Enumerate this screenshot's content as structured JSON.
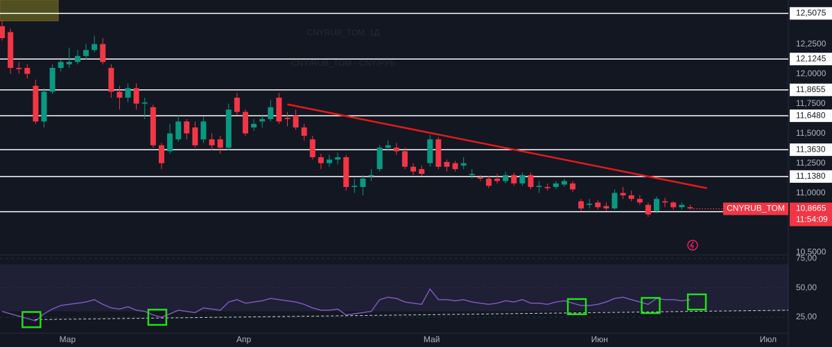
{
  "chart_data": {
    "type": "candlestick",
    "title": "CNYRUB_TOM, 1Д",
    "subtitle": "CNY/RUB_TOM - CNY/РУБ",
    "symbol_label": "CNYRUB_TOM",
    "last_price": {
      "value": 10.8665,
      "label": "10,8665"
    },
    "countdown": "11:54:09",
    "up_color": "#089981",
    "down_color": "#f23645",
    "x": [
      0,
      1,
      2,
      3,
      4,
      5,
      6,
      7,
      8,
      9,
      10,
      11,
      12,
      13,
      14,
      15,
      16,
      17,
      18,
      19,
      20,
      21,
      22,
      23,
      24,
      25,
      26,
      27,
      28,
      29,
      30,
      31,
      32,
      33,
      34,
      35,
      36,
      37,
      38,
      39,
      40,
      41,
      42,
      43,
      44,
      45,
      46,
      47,
      48,
      49,
      50,
      51,
      52,
      53,
      54,
      55,
      56,
      57,
      58,
      59,
      60,
      61,
      62,
      63,
      64,
      65,
      66,
      67,
      68,
      69,
      70,
      71,
      72,
      73,
      74,
      75,
      76,
      77,
      78,
      79,
      80,
      81,
      82
    ],
    "open": [
      12.4,
      12.35,
      12.05,
      12.05,
      11.9,
      11.6,
      11.85,
      12.05,
      12.08,
      12.1,
      12.15,
      12.2,
      12.25,
      12.05,
      11.85,
      11.8,
      11.88,
      11.75,
      11.72,
      11.4,
      11.35,
      11.45,
      11.6,
      11.55,
      11.45,
      11.45,
      11.45,
      11.38,
      11.8,
      11.68,
      11.55,
      11.6,
      11.62,
      11.8,
      11.63,
      11.65,
      11.55,
      11.45,
      11.3,
      11.25,
      11.28,
      11.3,
      11.05,
      11.05,
      11.14,
      11.2,
      11.38,
      11.38,
      11.35,
      11.22,
      11.2,
      11.25,
      11.45,
      11.26,
      11.25,
      11.23,
      11.15,
      11.13,
      11.12,
      11.12,
      11.1,
      11.15,
      11.08,
      11.15,
      11.05,
      11.05,
      11.05,
      11.07,
      11.08,
      10.93,
      10.9,
      10.92,
      10.89,
      10.87,
      11.0,
      10.98,
      10.95,
      10.9,
      10.85,
      10.93,
      10.92,
      10.88,
      10.88
    ],
    "high": [
      12.45,
      12.38,
      12.1,
      12.08,
      11.95,
      11.88,
      12.08,
      12.12,
      12.22,
      12.2,
      12.25,
      12.32,
      12.3,
      12.08,
      11.9,
      11.92,
      11.92,
      11.8,
      11.74,
      11.42,
      11.58,
      11.65,
      11.62,
      11.6,
      11.64,
      11.5,
      11.48,
      11.75,
      11.84,
      11.7,
      11.62,
      11.66,
      11.78,
      11.84,
      11.68,
      11.7,
      11.58,
      11.48,
      11.33,
      11.32,
      11.34,
      11.32,
      11.12,
      11.15,
      11.2,
      11.4,
      11.44,
      11.42,
      11.38,
      11.25,
      11.23,
      11.49,
      11.47,
      11.28,
      11.27,
      11.3,
      11.2,
      11.15,
      11.14,
      11.16,
      11.18,
      11.17,
      11.17,
      11.17,
      11.1,
      11.08,
      11.1,
      11.12,
      11.1,
      10.95,
      10.95,
      10.94,
      10.92,
      11.03,
      11.05,
      11.02,
      10.98,
      10.92,
      10.97,
      10.96,
      10.93,
      10.92,
      10.9
    ],
    "low": [
      12.28,
      12.0,
      12.0,
      11.96,
      11.58,
      11.55,
      11.83,
      12.02,
      12.05,
      12.08,
      12.12,
      12.18,
      12.08,
      11.8,
      11.7,
      11.76,
      11.7,
      11.62,
      11.38,
      11.2,
      11.33,
      11.43,
      11.45,
      11.38,
      11.42,
      11.36,
      11.33,
      11.36,
      11.65,
      11.48,
      11.52,
      11.55,
      11.6,
      11.58,
      11.56,
      11.53,
      11.44,
      11.28,
      11.2,
      11.22,
      11.24,
      11.02,
      11.0,
      10.98,
      11.1,
      11.18,
      11.35,
      11.32,
      11.2,
      11.15,
      11.14,
      11.22,
      11.2,
      11.18,
      11.18,
      11.2,
      11.12,
      11.1,
      11.04,
      11.08,
      11.08,
      11.06,
      11.06,
      11.03,
      11.0,
      11.02,
      11.03,
      11.05,
      11.01,
      10.85,
      10.87,
      10.86,
      10.85,
      10.86,
      10.95,
      10.93,
      10.9,
      10.8,
      10.83,
      10.88,
      10.86,
      10.86,
      10.86
    ],
    "close": [
      12.3,
      12.05,
      12.04,
      12.0,
      11.6,
      11.85,
      12.05,
      12.1,
      12.1,
      12.15,
      12.2,
      12.25,
      12.1,
      11.85,
      11.8,
      11.88,
      11.75,
      11.76,
      11.4,
      11.25,
      11.5,
      11.6,
      11.5,
      11.4,
      11.6,
      11.4,
      11.38,
      11.7,
      11.68,
      11.5,
      11.58,
      11.62,
      11.72,
      11.6,
      11.62,
      11.55,
      11.48,
      11.3,
      11.25,
      11.28,
      11.3,
      11.05,
      11.06,
      11.12,
      11.15,
      11.38,
      11.4,
      11.35,
      11.22,
      11.18,
      11.16,
      11.45,
      11.22,
      11.22,
      11.2,
      11.25,
      11.16,
      11.12,
      11.06,
      11.1,
      11.15,
      11.08,
      11.15,
      11.05,
      11.06,
      11.04,
      11.08,
      11.1,
      11.03,
      10.87,
      10.91,
      10.88,
      10.87,
      11.0,
      10.98,
      10.95,
      10.92,
      10.82,
      10.95,
      10.92,
      10.88,
      10.9,
      10.87
    ],
    "xlim": [
      -0.25,
      93.7
    ],
    "xticks": [
      {
        "value": 7.8,
        "label": "Мар"
      },
      {
        "value": 28.8,
        "label": "Апр"
      },
      {
        "value": 51.2,
        "label": "Май"
      },
      {
        "value": 71.2,
        "label": "Июн"
      },
      {
        "value": 91.3,
        "label": "Июл"
      }
    ],
    "ylim": [
      10.48,
      12.62
    ],
    "yticks": [
      {
        "value": 12.25,
        "label": "12,2500"
      },
      {
        "value": 12.0,
        "label": "12,0000"
      },
      {
        "value": 11.75,
        "label": "11,7500"
      },
      {
        "value": 11.5,
        "label": "11,5000"
      },
      {
        "value": 11.25,
        "label": "11,2500"
      },
      {
        "value": 11.0,
        "label": "11,0000"
      },
      {
        "value": 10.5,
        "label": "10,5000"
      }
    ],
    "levels": [
      {
        "value": 12.5075,
        "label": "12,5075"
      },
      {
        "value": 12.1245,
        "label": "12,1245"
      },
      {
        "value": 11.8655,
        "label": "11,8655"
      },
      {
        "value": 11.648,
        "label": "11,6480"
      },
      {
        "value": 11.363,
        "label": "11,3630"
      },
      {
        "value": 11.138,
        "label": "11,1380"
      },
      {
        "value": 10.843,
        "label": "10,8430"
      }
    ],
    "trendline": {
      "x": [
        34,
        84
      ],
      "y": [
        11.744,
        11.04
      ],
      "color": "#e31b1b"
    },
    "rsi": {
      "color": "#7e57c2",
      "values": [
        30,
        28,
        26,
        24,
        22,
        28,
        32,
        35,
        36,
        37,
        38,
        40,
        36,
        33,
        32,
        34,
        31,
        30,
        27,
        25,
        28,
        31,
        30,
        29,
        33,
        32,
        31,
        38,
        40,
        37,
        38,
        39,
        41,
        40,
        39,
        38,
        36,
        33,
        31,
        31,
        32,
        27,
        28,
        29,
        30,
        40,
        42,
        41,
        38,
        37,
        36,
        49,
        40,
        40,
        39,
        40,
        38,
        37,
        36,
        37,
        39,
        38,
        40,
        37,
        37,
        36,
        38,
        39,
        37,
        35,
        35,
        36,
        38,
        41,
        42,
        40,
        38,
        36,
        41,
        40,
        40,
        39,
        40
      ],
      "ylim": [
        11.5,
        78
      ],
      "yticks": [
        {
          "value": 75,
          "label": "75,00"
        },
        {
          "value": 50,
          "label": "50,00"
        },
        {
          "value": 25,
          "label": "25,00"
        }
      ],
      "band": [
        30,
        70
      ],
      "trendline": {
        "x": [
          3.9,
          93.7
        ],
        "y": [
          23,
          31
        ]
      },
      "highlights": [
        {
          "x": 3.5,
          "y": 23
        },
        {
          "x": 18.5,
          "y": 25
        },
        {
          "x": 68.5,
          "y": 34
        },
        {
          "x": 77.3,
          "y": 35
        },
        {
          "x": 82.8,
          "y": 38
        }
      ]
    }
  }
}
